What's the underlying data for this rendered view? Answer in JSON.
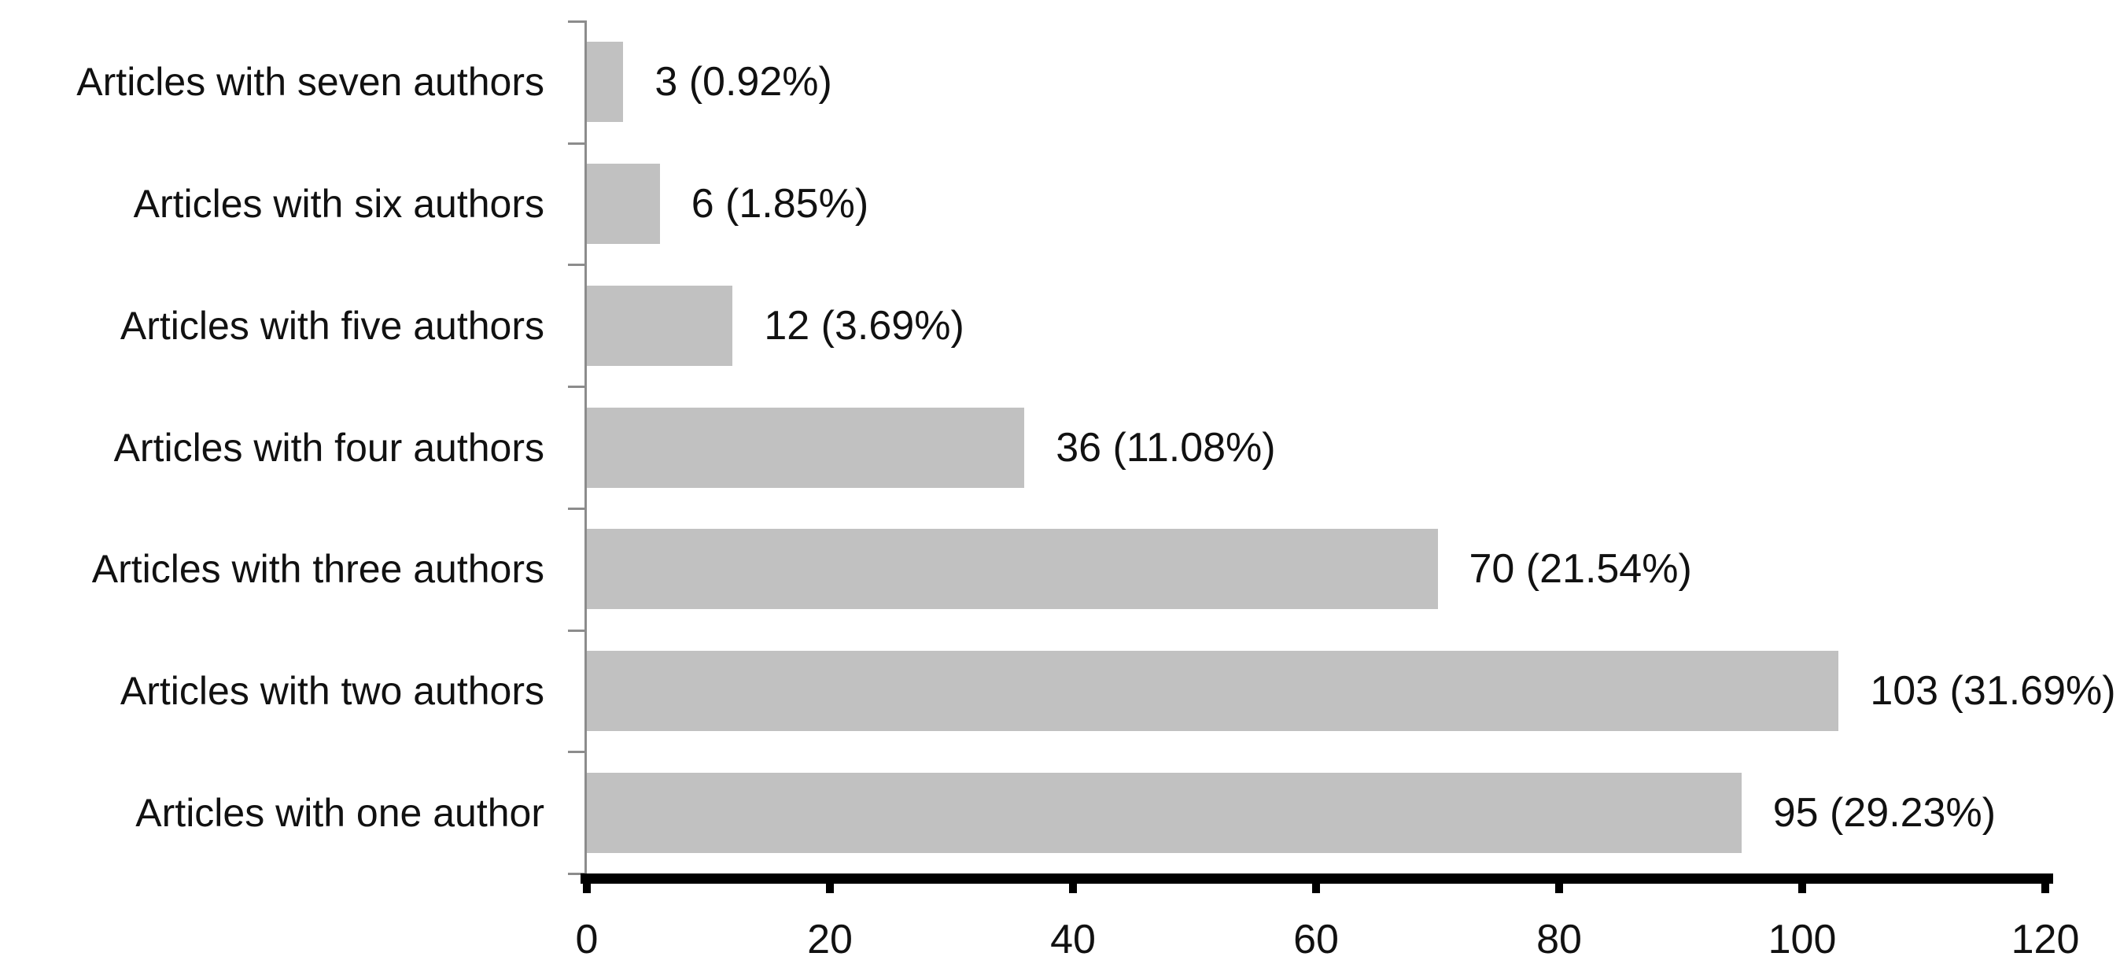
{
  "chart_data": {
    "type": "bar",
    "orientation": "horizontal",
    "title": "",
    "xlabel": "",
    "ylabel": "",
    "categories": [
      "Articles with seven authors",
      "Articles with six authors",
      "Articles with five authors",
      "Articles with four authors",
      "Articles with three authors",
      "Articles with two authors",
      "Articles with one author"
    ],
    "values": [
      3,
      6,
      12,
      36,
      70,
      103,
      95
    ],
    "value_labels": [
      "3 (0.92%)",
      "6 (1.85%)",
      "12 (3.69%)",
      "36 (11.08%)",
      "70 (21.54%)",
      "103 (31.69%)",
      "95 (29.23%)"
    ],
    "x_ticks": [
      "0",
      "20",
      "40",
      "60",
      "80",
      "100",
      "120"
    ],
    "x_tick_values": [
      0,
      20,
      40,
      60,
      80,
      100,
      120
    ],
    "xlim": [
      0,
      120
    ],
    "grid": "off",
    "legend": "none",
    "bar_color": "#c1c1c1",
    "y_axis_color": "#8c8c8c",
    "x_axis_color": "#000000",
    "text_color": "#111111"
  }
}
